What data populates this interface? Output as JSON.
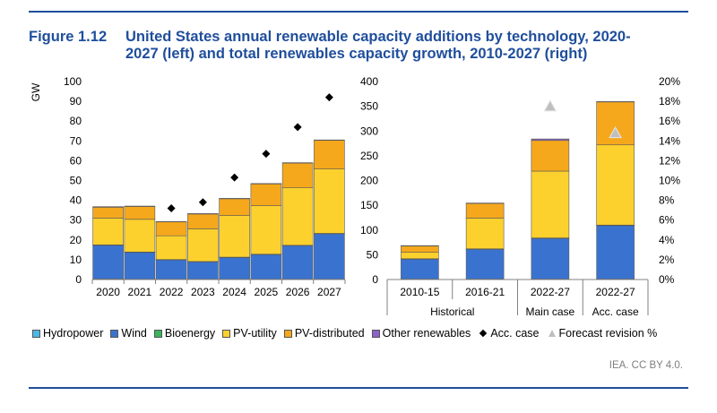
{
  "figure": {
    "number": "Figure 1.12",
    "title_line1": "United States annual renewable capacity additions by technology, 2020-",
    "title_line2": "2027 (left) and total renewables capacity growth, 2010-2027 (right)",
    "credit": "IEA. CC BY 4.0."
  },
  "legend": [
    {
      "label": "Hydropower",
      "color": "#4db8e8",
      "kind": "box"
    },
    {
      "label": "Wind",
      "color": "#3a73cf",
      "kind": "box"
    },
    {
      "label": "Bioenergy",
      "color": "#3cb45a",
      "kind": "box"
    },
    {
      "label": "PV-utility",
      "color": "#fdd12d",
      "kind": "box"
    },
    {
      "label": "PV-distributed",
      "color": "#f5a81c",
      "kind": "box"
    },
    {
      "label": "Other renewables",
      "color": "#8e62c8",
      "kind": "box"
    },
    {
      "label": "Acc. case",
      "color": "#000000",
      "kind": "diamond"
    },
    {
      "label": "Forecast revision %",
      "color": "#bfbfbf",
      "kind": "triangle"
    }
  ],
  "chart_data": [
    {
      "type": "bar",
      "stacked": true,
      "ylabel": "GW",
      "ylim": [
        0,
        100
      ],
      "yticks": [
        0,
        10,
        20,
        30,
        40,
        50,
        60,
        70,
        80,
        90,
        100
      ],
      "categories": [
        "2020",
        "2021",
        "2022",
        "2023",
        "2024",
        "2025",
        "2026",
        "2027"
      ],
      "series": [
        {
          "name": "Hydropower",
          "color": "#4db8e8",
          "values": [
            0.3,
            0.2,
            0.2,
            0.2,
            0.2,
            0.2,
            0.2,
            0.2
          ]
        },
        {
          "name": "Wind",
          "color": "#3a73cf",
          "values": [
            17,
            13.5,
            9.8,
            8.8,
            11,
            12.5,
            17,
            23
          ]
        },
        {
          "name": "Bioenergy",
          "color": "#3cb45a",
          "values": [
            0.2,
            0.2,
            0.1,
            0.1,
            0.1,
            0.1,
            0.1,
            0.1
          ]
        },
        {
          "name": "PV-utility",
          "color": "#fdd12d",
          "values": [
            13.5,
            16.5,
            12,
            16.5,
            21,
            24.5,
            29,
            32.5
          ]
        },
        {
          "name": "PV-distributed",
          "color": "#f5a81c",
          "values": [
            5.5,
            6.5,
            7,
            7.5,
            8.5,
            11,
            12.5,
            14.5
          ]
        },
        {
          "name": "Other renewables",
          "color": "#8e62c8",
          "values": [
            0.3,
            0.2,
            0.2,
            0.2,
            0.2,
            0.2,
            0.2,
            0.2
          ]
        }
      ],
      "markers": {
        "name": "Acc. case",
        "values": [
          null,
          null,
          36,
          39,
          51.5,
          63.5,
          77,
          92
        ]
      }
    },
    {
      "type": "bar",
      "stacked": true,
      "ylim": [
        0,
        400
      ],
      "yticks": [
        0,
        50,
        100,
        150,
        200,
        250,
        300,
        350,
        400
      ],
      "y2lim": [
        0,
        20
      ],
      "y2ticks": [
        "0%",
        "2%",
        "4%",
        "6%",
        "8%",
        "10%",
        "12%",
        "14%",
        "16%",
        "18%",
        "20%"
      ],
      "categories": [
        "2010-15",
        "2016-21",
        "2022-27",
        "2022-27"
      ],
      "groups": [
        {
          "label": "Historical",
          "span": 2
        },
        {
          "label": "Main case",
          "span": 1
        },
        {
          "label": "Acc. case",
          "span": 1
        }
      ],
      "series": [
        {
          "name": "Hydropower",
          "color": "#4db8e8",
          "values": [
            1,
            1,
            1,
            1
          ]
        },
        {
          "name": "Wind",
          "color": "#3a73cf",
          "values": [
            40,
            60,
            82,
            108
          ]
        },
        {
          "name": "Bioenergy",
          "color": "#3cb45a",
          "values": [
            1,
            1,
            1,
            1
          ]
        },
        {
          "name": "PV-utility",
          "color": "#fdd12d",
          "values": [
            13,
            62,
            135,
            162
          ]
        },
        {
          "name": "PV-distributed",
          "color": "#f5a81c",
          "values": [
            13,
            30,
            62,
            87
          ]
        },
        {
          "name": "Other renewables",
          "color": "#8e62c8",
          "values": [
            0.5,
            0.5,
            3,
            0.5
          ]
        }
      ],
      "markers": {
        "name": "Forecast revision %",
        "axis": "right",
        "values": [
          null,
          null,
          17.5,
          14.8
        ]
      }
    }
  ]
}
